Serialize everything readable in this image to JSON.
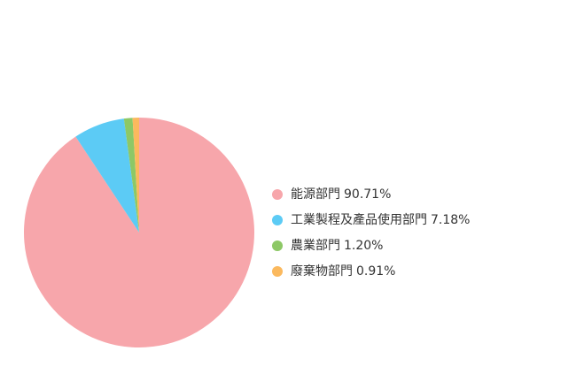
{
  "chart_data": {
    "type": "pie",
    "categories": [
      "能源部門",
      "工業製程及產品使用部門",
      "農業部門",
      "廢棄物部門"
    ],
    "values": [
      90.71,
      7.18,
      1.2,
      0.91
    ],
    "value_labels": [
      "90.71%",
      "7.18%",
      "1.20%",
      "0.91%"
    ],
    "colors": [
      "#f7a6ab",
      "#5ccbf5",
      "#8dc866",
      "#fbb95e"
    ],
    "legend": "right"
  }
}
